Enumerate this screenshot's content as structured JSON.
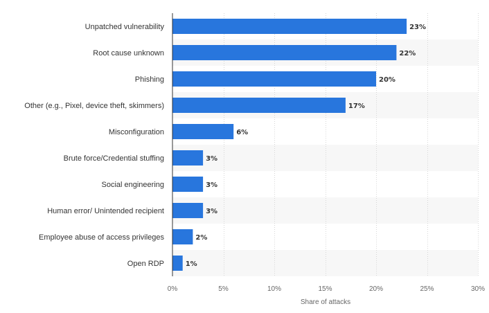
{
  "chart_data": {
    "type": "bar",
    "orientation": "horizontal",
    "categories": [
      "Unpatched vulnerability",
      "Root cause unknown",
      "Phishing",
      "Other (e.g., Pixel, device theft, skimmers)",
      "Misconfiguration",
      "Brute force/Credential stuffing",
      "Social engineering",
      "Human error/ Unintended recipient",
      "Employee abuse of access privileges",
      "Open RDP"
    ],
    "values": [
      23,
      22,
      20,
      17,
      6,
      3,
      3,
      3,
      2,
      1
    ],
    "value_labels": [
      "23%",
      "22%",
      "20%",
      "17%",
      "6%",
      "3%",
      "3%",
      "3%",
      "2%",
      "1%"
    ],
    "xlabel": "Share of attacks",
    "ylabel": "",
    "xlim": [
      0,
      30
    ],
    "xticks": [
      0,
      5,
      10,
      15,
      20,
      25,
      30
    ],
    "xtick_labels": [
      "0%",
      "5%",
      "10%",
      "15%",
      "20%",
      "25%",
      "30%"
    ],
    "grid": true,
    "bar_color": "#2876dd",
    "band_color": "#f7f7f7"
  }
}
